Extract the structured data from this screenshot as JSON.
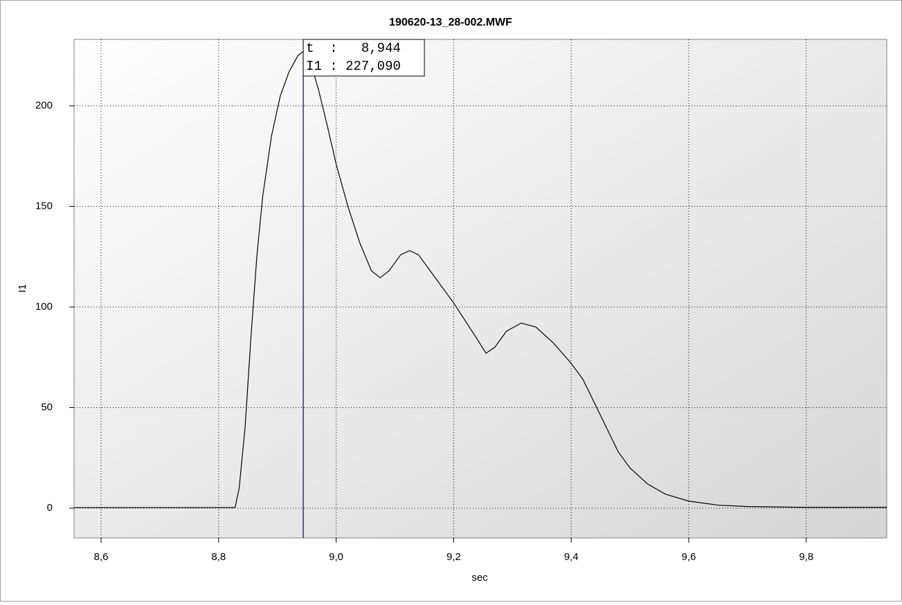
{
  "chart_data": {
    "type": "line",
    "title": "190620-13_28-002.MWF",
    "x_label": "sec",
    "y_label": "I1",
    "x": [
      8.554,
      8.6,
      8.7,
      8.8,
      8.828,
      8.835,
      8.845,
      8.855,
      8.865,
      8.875,
      8.89,
      8.905,
      8.92,
      8.935,
      8.944,
      8.955,
      8.97,
      8.985,
      9.0,
      9.02,
      9.04,
      9.06,
      9.075,
      9.09,
      9.11,
      9.125,
      9.14,
      9.16,
      9.2,
      9.24,
      9.255,
      9.27,
      9.29,
      9.315,
      9.34,
      9.37,
      9.4,
      9.42,
      9.44,
      9.46,
      9.48,
      9.5,
      9.53,
      9.56,
      9.6,
      9.65,
      9.7,
      9.8,
      9.937
    ],
    "series": [
      {
        "name": "I1",
        "color": "#000000",
        "values": [
          0.3,
          0.3,
          0.3,
          0.3,
          0.3,
          10,
          40,
          85,
          125,
          155,
          185,
          205,
          217,
          225,
          227.09,
          223,
          208,
          190,
          171,
          150,
          132,
          118,
          114.5,
          118,
          126,
          128,
          126,
          118,
          102,
          84,
          77,
          80,
          88,
          92,
          90,
          82,
          72,
          64,
          52,
          40,
          28,
          20,
          12,
          7,
          3.5,
          1.5,
          0.8,
          0.4,
          0.4
        ]
      }
    ],
    "xlim": [
      8.554,
      9.937
    ],
    "ylim": [
      -14.8,
      233
    ],
    "xticks": [
      {
        "value": 8.6,
        "label": "8,6"
      },
      {
        "value": 8.8,
        "label": "8,8"
      },
      {
        "value": 9.0,
        "label": "9,0"
      },
      {
        "value": 9.2,
        "label": "9,2"
      },
      {
        "value": 9.4,
        "label": "9,4"
      },
      {
        "value": 9.6,
        "label": "9,6"
      },
      {
        "value": 9.8,
        "label": "9,8"
      }
    ],
    "yticks": [
      0,
      50,
      100,
      150,
      200
    ],
    "grid": true,
    "cursor": {
      "x": 8.944,
      "color": "#000080",
      "lines": [
        "t  :   8,944",
        "I1 : 227,090"
      ]
    }
  }
}
